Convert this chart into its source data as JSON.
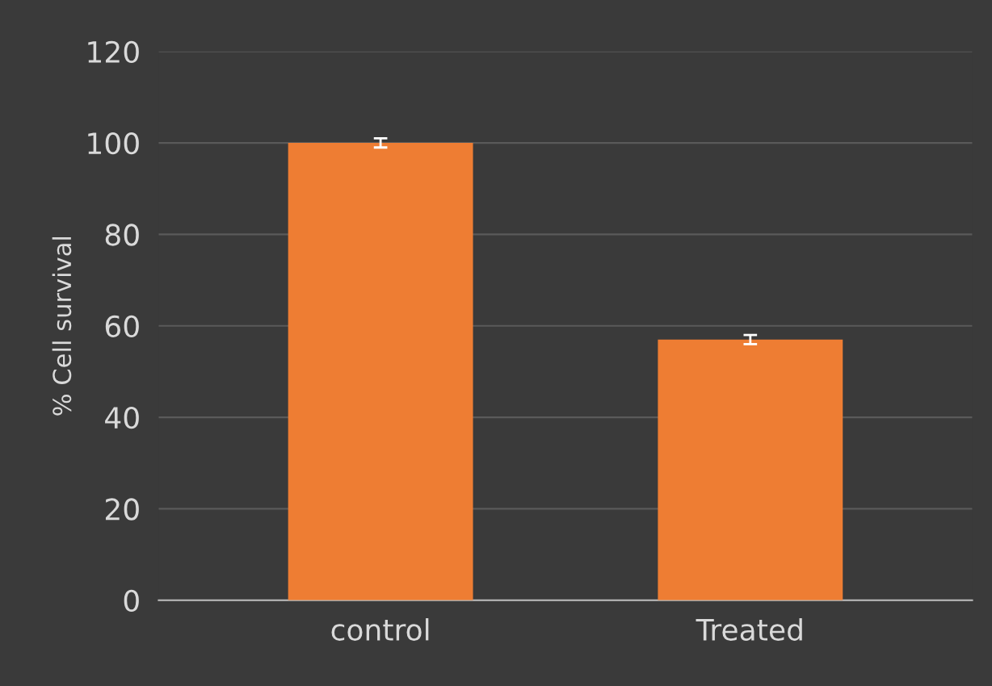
{
  "chart_data": {
    "type": "bar",
    "ylabel": "% Cell survival",
    "categories": [
      "control",
      "Treated"
    ],
    "values": [
      100,
      57
    ],
    "errors": [
      1,
      1
    ],
    "color": "#ee7d33",
    "ylim": [
      0,
      120
    ],
    "yticks": [
      0,
      20,
      40,
      60,
      80,
      100,
      120
    ],
    "grid": "y"
  }
}
